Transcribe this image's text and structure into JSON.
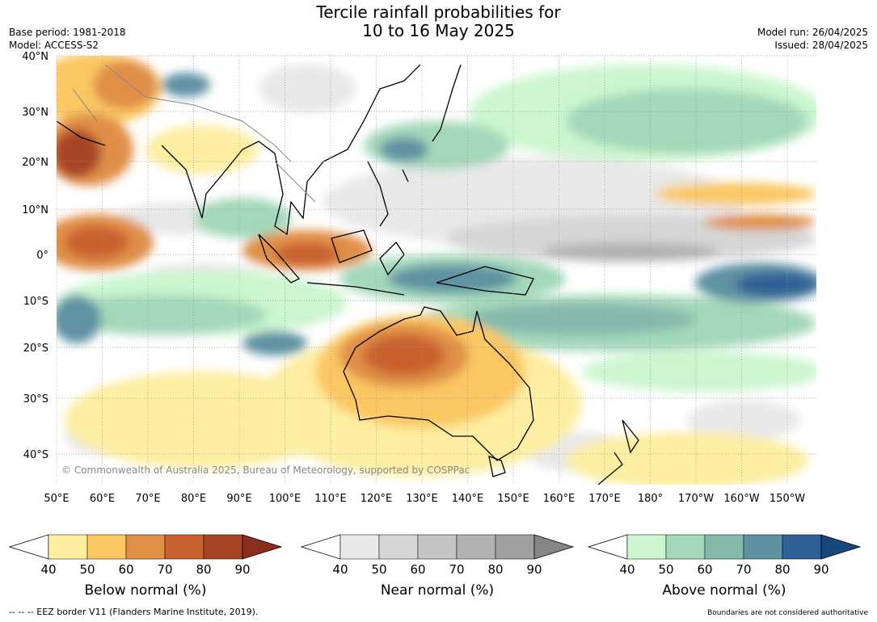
{
  "title": {
    "line1": "Tercile rainfall probabilities for",
    "line2": "10 to 16 May 2025"
  },
  "meta": {
    "base_period": "Base period: 1981-2018",
    "model": "Model: ACCESS-S2",
    "model_run": "Model run: 26/04/2025",
    "issued": "Issued: 28/04/2025"
  },
  "map": {
    "lat_labels": [
      "40°N",
      "30°N",
      "20°N",
      "10°N",
      "0°",
      "10°S",
      "20°S",
      "30°S",
      "40°S"
    ],
    "lon_labels": [
      "50°E",
      "60°E",
      "70°E",
      "80°E",
      "90°E",
      "100°E",
      "110°E",
      "120°E",
      "130°E",
      "140°E",
      "150°E",
      "160°E",
      "170°E",
      "180°",
      "170°W",
      "160°W",
      "150°W"
    ],
    "copyright": "© Commonwealth of Australia 2025, Bureau of Meteorology, supported by COSPPac",
    "land_color": "#ffffff",
    "grid_color": "#999999"
  },
  "legends": [
    {
      "title": "Below normal (%)",
      "ticks": [
        "40",
        "50",
        "60",
        "70",
        "80",
        "90"
      ],
      "colors": [
        "#fdeea1",
        "#fbc762",
        "#e08f47",
        "#c9602f",
        "#a84426",
        "#8b2e1b"
      ]
    },
    {
      "title": "Near normal (%)",
      "ticks": [
        "40",
        "50",
        "60",
        "70",
        "80",
        "90"
      ],
      "colors": [
        "#e8e8e8",
        "#d6d6d6",
        "#c4c4c4",
        "#b2b2b2",
        "#a0a0a0",
        "#868686"
      ]
    },
    {
      "title": "Above normal (%)",
      "ticks": [
        "40",
        "50",
        "60",
        "70",
        "80",
        "90"
      ],
      "colors": [
        "#cbf6cf",
        "#a3d8b9",
        "#85b9ac",
        "#5e92a3",
        "#2f6196",
        "#17477e"
      ]
    }
  ],
  "footer": {
    "eez": "--  --  -- EEZ border V11 (Flanders Marine Institute, 2019).",
    "disclaimer": "Boundaries are not considered authoritative"
  }
}
